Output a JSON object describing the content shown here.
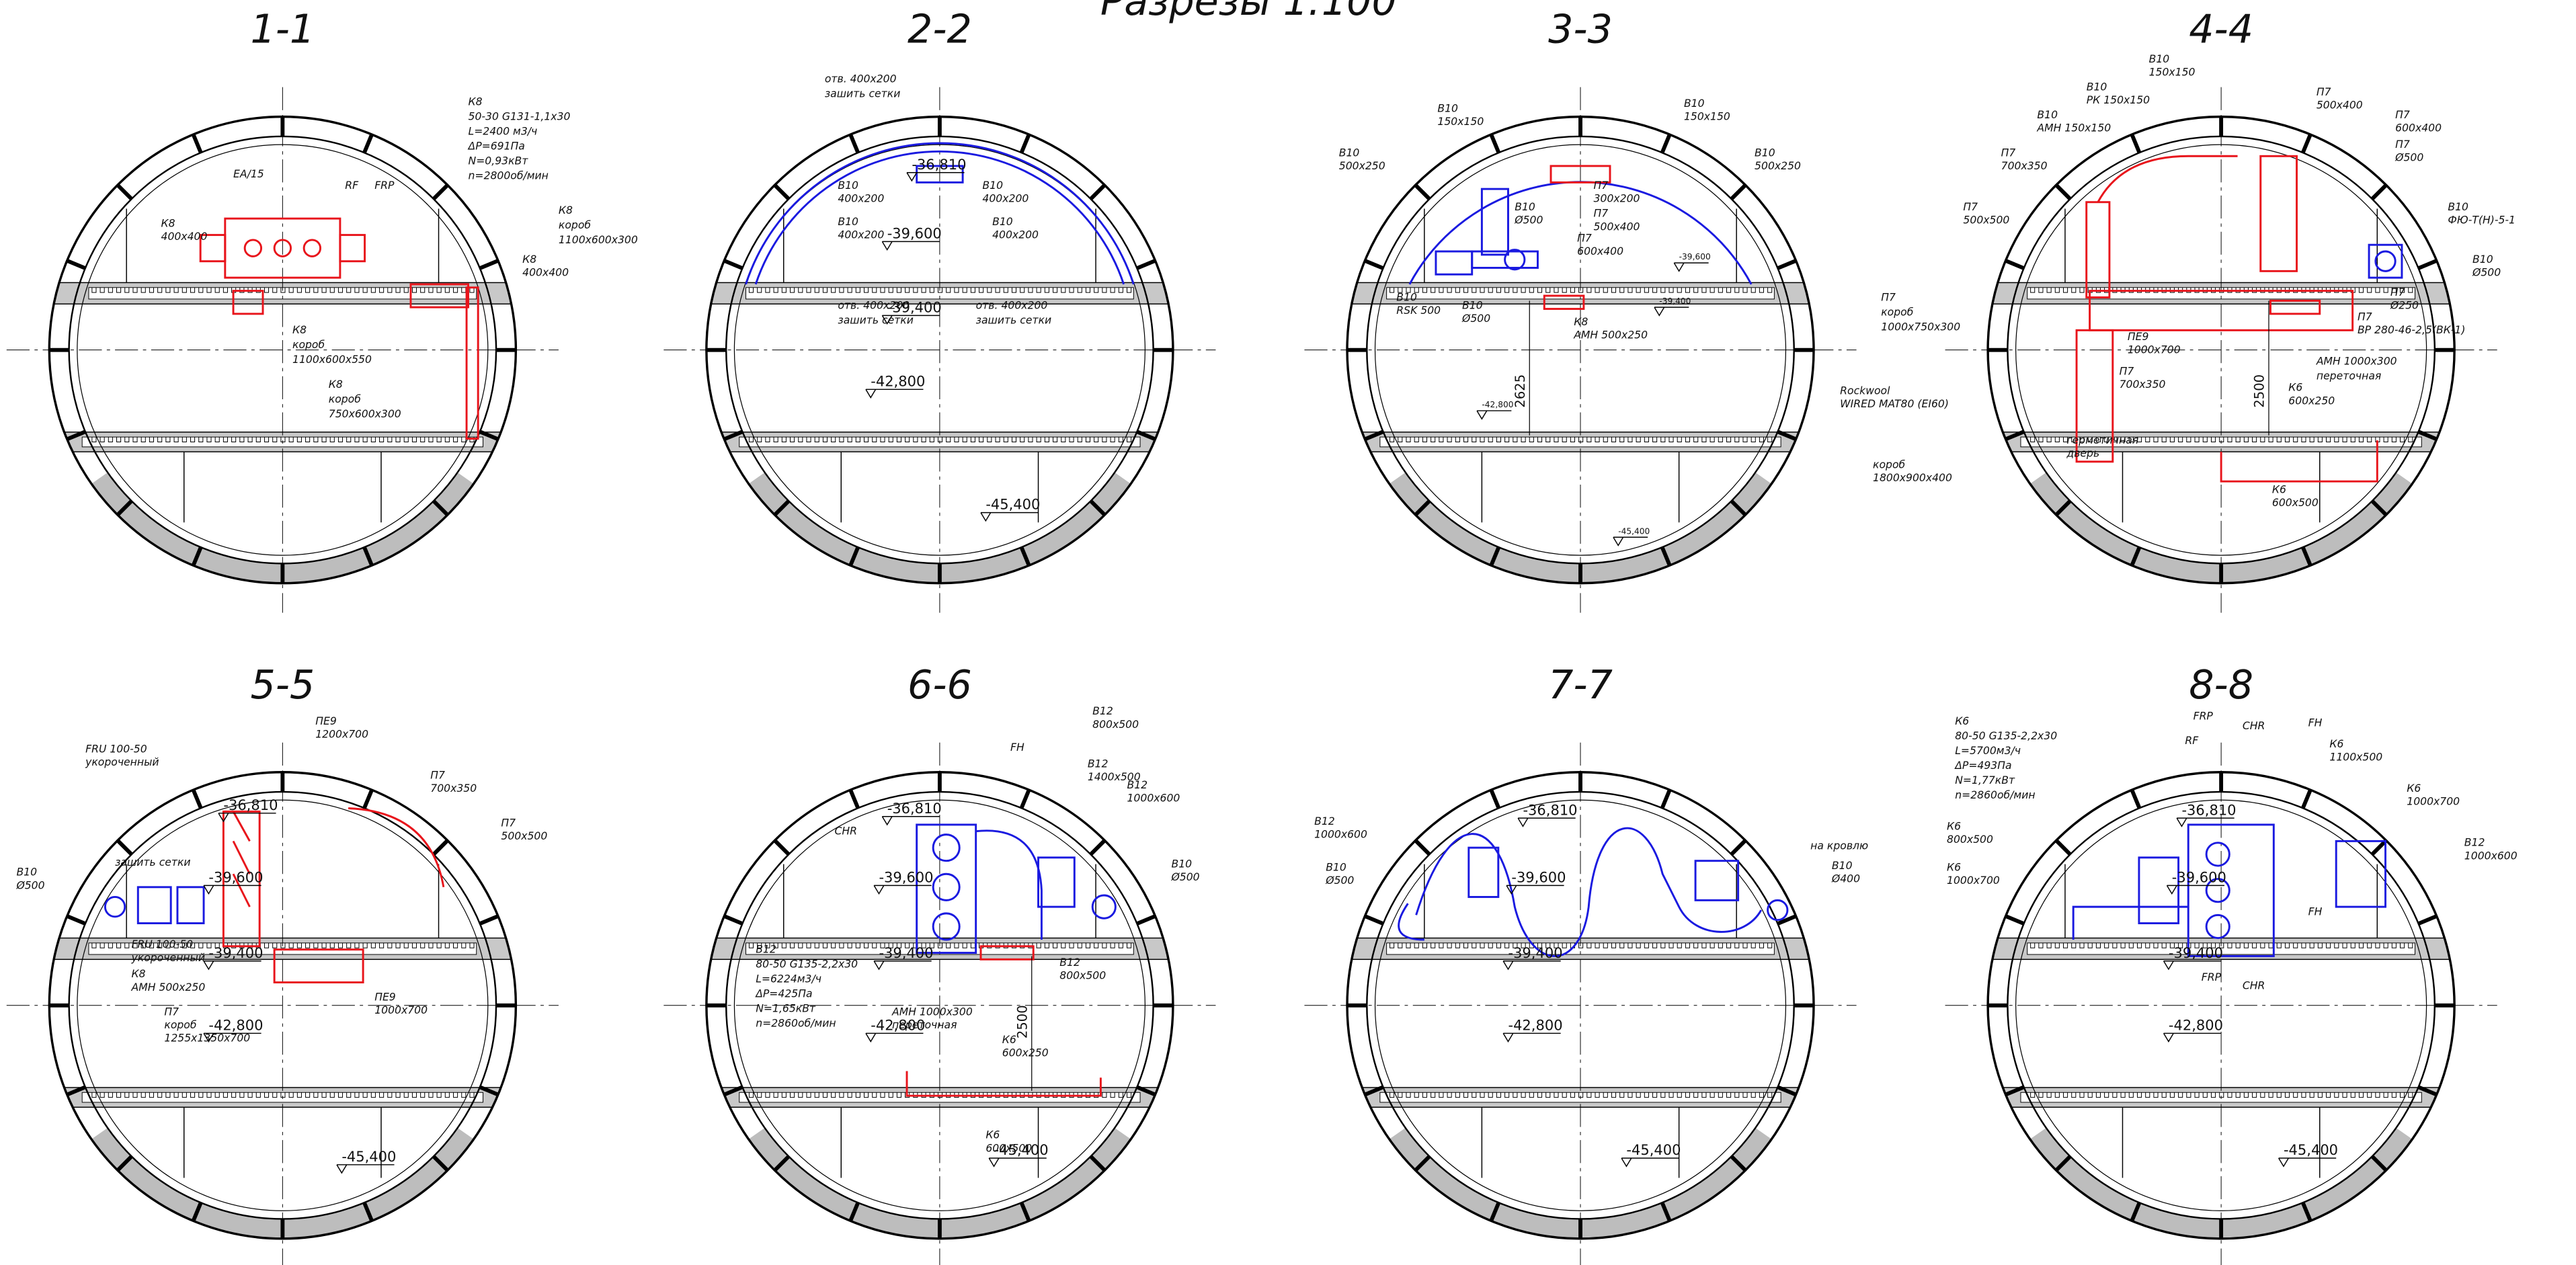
{
  "header": {
    "title": "Разрезы 1:100"
  },
  "sections": [
    {
      "title": "1-1",
      "elevations": [],
      "dims": [],
      "labels": [
        "EA/15",
        "RF",
        "FRP",
        "К8",
        "50-30 G131-1,1x30",
        "L=2400 м3/ч",
        "ΔP=691Па",
        "N=0,93кВт",
        "n=2800об/мин",
        "К8",
        "400x400",
        "К8",
        "короб",
        "1100x600x300",
        "К8",
        "400x400",
        "К8",
        "короб",
        "1100x600x550",
        "К8",
        "короб",
        "750x600x300"
      ]
    },
    {
      "title": "2-2",
      "elevations": [
        "-36,810",
        "-39,600",
        "-39,400",
        "-42,800",
        "-45,400"
      ],
      "dims": [],
      "labels": [
        "отв. 400x200",
        "зашить сетки",
        "В10",
        "400x200",
        "В10",
        "400x200",
        "В10",
        "400x200",
        "В10",
        "400x200",
        "отв. 400x200",
        "зашить сетки",
        "отв. 400x200",
        "зашить сетки"
      ]
    },
    {
      "title": "3-3",
      "elevations": [
        "-39,600",
        "-39,400",
        "-42,800",
        "-45,400"
      ],
      "dims": [
        "2625"
      ],
      "labels": [
        "В10",
        "150x150",
        "В10",
        "500x250",
        "В10",
        "150x150",
        "В10",
        "500x250",
        "П7",
        "300x200",
        "П7",
        "500x400",
        "П7",
        "600x400",
        "В10",
        "Ø500",
        "В10",
        "RSK 500",
        "В10",
        "Ø500",
        "К8",
        "AMH 500x250"
      ]
    },
    {
      "title": "4-4",
      "elevations": [],
      "dims": [
        "2500"
      ],
      "labels": [
        "В10",
        "150x150",
        "В10",
        "РК 150x150",
        "В10",
        "AMH 150x150",
        "П7",
        "700x350",
        "П7",
        "500x500",
        "П7",
        "500x400",
        "П7",
        "600x400",
        "П7",
        "Ø500",
        "В10",
        "ФЮ-T(H)-5-1",
        "В10",
        "Ø500",
        "П7",
        "Ø250",
        "П7",
        "ВР 280-46-2,5(ВК-1)",
        "AMH 1000x300",
        "переточная",
        "П7",
        "короб",
        "1000x750x300",
        "ПЕ9",
        "1000x700",
        "П7",
        "700x350",
        "Rockwool",
        "WIRED MAT80 (EI60)",
        "К6",
        "600x250",
        "герметичная",
        "дверь",
        "короб",
        "1800x900x400",
        "К6",
        "600x500"
      ]
    },
    {
      "title": "5-5",
      "elevations": [
        "-36,810",
        "-39,600",
        "-39,400",
        "-42,800",
        "-45,400"
      ],
      "dims": [],
      "labels": [
        "ПЕ9",
        "1200x700",
        "FRU 100-50",
        "укороченный",
        "П7",
        "700x350",
        "П7",
        "500x500",
        "зашить сетки",
        "В10",
        "Ø500",
        "FRU 100-50",
        "укороченный",
        "К8",
        "AMH 500x250",
        "П7",
        "короб",
        "1255x1350x700",
        "ПЕ9",
        "1000x700"
      ]
    },
    {
      "title": "6-6",
      "elevations": [
        "-36,810",
        "-39,600",
        "-39,400",
        "-42,800",
        "-45,400"
      ],
      "dims": [
        "2500"
      ],
      "labels": [
        "В12",
        "800x500",
        "FH",
        "В12",
        "1400x500",
        "В12",
        "1000x600",
        "CHR",
        "В10",
        "Ø500",
        "В12",
        "80-50 G135-2,2x30",
        "L=6224м3/ч",
        "ΔP=425Па",
        "N=1,65кВт",
        "n=2860об/мин",
        "В12",
        "800x500",
        "AMH 1000x300",
        "переточная",
        "К6",
        "600x250",
        "К6",
        "600x500"
      ]
    },
    {
      "title": "7-7",
      "elevations": [
        "-36,810",
        "-39,600",
        "-39,400",
        "-42,800",
        "-45,400"
      ],
      "dims": [],
      "labels": [
        "В12",
        "1000x600",
        "В10",
        "Ø500",
        "на кровлю",
        "В10",
        "Ø400"
      ]
    },
    {
      "title": "8-8",
      "elevations": [
        "-36,810",
        "-39,600",
        "-39,400",
        "-42,800",
        "-45,400"
      ],
      "dims": [],
      "labels": [
        "К6",
        "80-50 G135-2,2x30",
        "L=5700м3/ч",
        "ΔP=493Па",
        "N=1,77кВт",
        "n=2860об/мин",
        "FRP",
        "RF",
        "CHR",
        "FH",
        "К6",
        "1100x500",
        "К6",
        "1000x700",
        "К6",
        "800x500",
        "К6",
        "1000x700",
        "В12",
        "1000x600",
        "FH",
        "FRP",
        "CHR"
      ]
    }
  ]
}
